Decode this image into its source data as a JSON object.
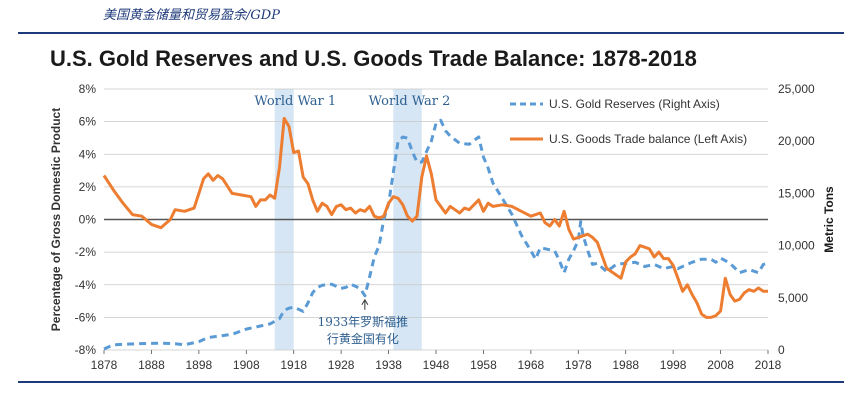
{
  "caption": "美国黄金储量和贸易盈余/GDP",
  "colors": {
    "gold": "#5b9bd5",
    "trade": "#ed7d31",
    "shade": "#d6e6f4",
    "grid": "#c8c8c8",
    "zero": "#555555",
    "text": "#333333",
    "title": "#1a1a1a",
    "annot": "#2e5f8f",
    "rule": "#1f3a7a"
  },
  "chart_data": {
    "type": "line",
    "title": "U.S. Gold Reserves and U.S. Goods Trade Balance: 1878-2018",
    "ylabel_left": "Percentage of Gross Domestic Product",
    "ylabel_right": "Metric Tons",
    "xlim": [
      1878,
      2018
    ],
    "ylim_left": [
      -8,
      8
    ],
    "ylim_right": [
      0,
      25000
    ],
    "x_ticks": [
      "1878",
      "1888",
      "1898",
      "1908",
      "1918",
      "1928",
      "1938",
      "1948",
      "1958",
      "1968",
      "1978",
      "1988",
      "1998",
      "2008",
      "2018"
    ],
    "y_left_ticks": [
      "8%",
      "6%",
      "4%",
      "2%",
      "0%",
      "-2%",
      "-4%",
      "-6%",
      "-8%"
    ],
    "y_right_ticks": [
      "25,000",
      "20,000",
      "15,000",
      "10,000",
      "5,000",
      "0"
    ],
    "legend_position": "top-right",
    "shaded_periods": [
      {
        "label": "World War 1",
        "start": 1914,
        "end": 1918
      },
      {
        "label": "World War 2",
        "start": 1939,
        "end": 1945
      }
    ],
    "annotation": {
      "x": 1933,
      "y_right": 5000,
      "lines": [
        "1933年罗斯福推",
        "行黄金国有化"
      ]
    },
    "series": [
      {
        "name": "U.S. Gold Reserves (Right Axis)",
        "axis": "right",
        "style": "dashed",
        "points": [
          [
            1878,
            100
          ],
          [
            1880,
            500
          ],
          [
            1885,
            600
          ],
          [
            1890,
            650
          ],
          [
            1893,
            600
          ],
          [
            1895,
            500
          ],
          [
            1898,
            800
          ],
          [
            1900,
            1200
          ],
          [
            1905,
            1500
          ],
          [
            1908,
            2000
          ],
          [
            1910,
            2200
          ],
          [
            1913,
            2500
          ],
          [
            1915,
            3000
          ],
          [
            1916,
            3800
          ],
          [
            1917,
            4000
          ],
          [
            1918,
            4100
          ],
          [
            1919,
            3900
          ],
          [
            1920,
            3700
          ],
          [
            1921,
            4500
          ],
          [
            1922,
            5500
          ],
          [
            1923,
            6000
          ],
          [
            1924,
            6200
          ],
          [
            1926,
            6300
          ],
          [
            1928,
            5900
          ],
          [
            1929,
            6000
          ],
          [
            1930,
            6300
          ],
          [
            1931,
            6100
          ],
          [
            1932,
            5900
          ],
          [
            1933,
            5200
          ],
          [
            1934,
            7000
          ],
          [
            1935,
            8900
          ],
          [
            1936,
            10000
          ],
          [
            1937,
            12500
          ],
          [
            1938,
            14000
          ],
          [
            1939,
            17000
          ],
          [
            1940,
            20000
          ],
          [
            1941,
            20400
          ],
          [
            1942,
            20300
          ],
          [
            1943,
            19000
          ],
          [
            1944,
            18000
          ],
          [
            1945,
            18000
          ],
          [
            1946,
            19000
          ],
          [
            1947,
            20000
          ],
          [
            1948,
            21700
          ],
          [
            1949,
            22000
          ],
          [
            1950,
            21000
          ],
          [
            1951,
            20500
          ],
          [
            1953,
            19800
          ],
          [
            1955,
            19700
          ],
          [
            1957,
            20400
          ],
          [
            1958,
            18500
          ],
          [
            1959,
            17400
          ],
          [
            1960,
            16000
          ],
          [
            1962,
            14500
          ],
          [
            1964,
            13000
          ],
          [
            1966,
            11000
          ],
          [
            1968,
            9500
          ],
          [
            1969,
            8700
          ],
          [
            1970,
            9800
          ],
          [
            1972,
            9600
          ],
          [
            1973,
            9500
          ],
          [
            1974,
            8600
          ],
          [
            1975,
            7400
          ],
          [
            1976,
            8700
          ],
          [
            1977,
            9500
          ],
          [
            1978,
            10500
          ],
          [
            1978.5,
            12300
          ],
          [
            1979,
            11000
          ],
          [
            1980,
            9500
          ],
          [
            1981,
            8200
          ],
          [
            1982,
            8300
          ],
          [
            1984,
            7500
          ],
          [
            1986,
            8200
          ],
          [
            1988,
            8300
          ],
          [
            1990,
            8400
          ],
          [
            1992,
            8000
          ],
          [
            1994,
            8200
          ],
          [
            1996,
            7800
          ],
          [
            1998,
            8000
          ],
          [
            1999,
            7800
          ],
          [
            2000,
            8000
          ],
          [
            2002,
            8400
          ],
          [
            2004,
            8700
          ],
          [
            2006,
            8700
          ],
          [
            2007,
            8400
          ],
          [
            2008,
            8800
          ],
          [
            2010,
            8300
          ],
          [
            2012,
            7400
          ],
          [
            2014,
            7700
          ],
          [
            2016,
            7400
          ],
          [
            2017,
            8200
          ],
          [
            2018,
            8300
          ]
        ]
      },
      {
        "name": "U.S. Goods Trade balance (Left Axis)",
        "axis": "left",
        "style": "solid",
        "points": [
          [
            1878,
            2.7
          ],
          [
            1880,
            1.8
          ],
          [
            1882,
            1.0
          ],
          [
            1884,
            0.3
          ],
          [
            1886,
            0.2
          ],
          [
            1888,
            -0.3
          ],
          [
            1890,
            -0.5
          ],
          [
            1892,
            0.0
          ],
          [
            1893,
            0.6
          ],
          [
            1895,
            0.5
          ],
          [
            1897,
            0.7
          ],
          [
            1898,
            1.6
          ],
          [
            1899,
            2.5
          ],
          [
            1900,
            2.8
          ],
          [
            1901,
            2.4
          ],
          [
            1902,
            2.7
          ],
          [
            1903,
            2.5
          ],
          [
            1905,
            1.6
          ],
          [
            1907,
            1.5
          ],
          [
            1909,
            1.4
          ],
          [
            1910,
            0.8
          ],
          [
            1911,
            1.2
          ],
          [
            1912,
            1.2
          ],
          [
            1913,
            1.5
          ],
          [
            1914,
            1.3
          ],
          [
            1915,
            3.2
          ],
          [
            1916,
            6.2
          ],
          [
            1917,
            5.7
          ],
          [
            1918,
            4.1
          ],
          [
            1919,
            4.2
          ],
          [
            1920,
            2.6
          ],
          [
            1921,
            2.2
          ],
          [
            1922,
            1.2
          ],
          [
            1923,
            0.5
          ],
          [
            1924,
            1.0
          ],
          [
            1925,
            0.8
          ],
          [
            1926,
            0.3
          ],
          [
            1927,
            0.8
          ],
          [
            1928,
            0.9
          ],
          [
            1929,
            0.6
          ],
          [
            1930,
            0.7
          ],
          [
            1931,
            0.4
          ],
          [
            1932,
            0.6
          ],
          [
            1933,
            0.5
          ],
          [
            1934,
            0.8
          ],
          [
            1935,
            0.2
          ],
          [
            1936,
            0.1
          ],
          [
            1937,
            0.2
          ],
          [
            1938,
            1.0
          ],
          [
            1939,
            1.4
          ],
          [
            1940,
            1.3
          ],
          [
            1941,
            0.9
          ],
          [
            1942,
            0.2
          ],
          [
            1943,
            -0.1
          ],
          [
            1944,
            0.2
          ],
          [
            1945,
            2.6
          ],
          [
            1946,
            3.9
          ],
          [
            1947,
            2.8
          ],
          [
            1948,
            1.2
          ],
          [
            1949,
            0.8
          ],
          [
            1950,
            0.4
          ],
          [
            1951,
            0.8
          ],
          [
            1952,
            0.6
          ],
          [
            1953,
            0.4
          ],
          [
            1954,
            0.7
          ],
          [
            1955,
            0.6
          ],
          [
            1956,
            0.9
          ],
          [
            1957,
            1.2
          ],
          [
            1958,
            0.5
          ],
          [
            1959,
            1.0
          ],
          [
            1960,
            0.8
          ],
          [
            1962,
            0.9
          ],
          [
            1964,
            0.8
          ],
          [
            1966,
            0.5
          ],
          [
            1968,
            0.2
          ],
          [
            1970,
            0.4
          ],
          [
            1971,
            -0.2
          ],
          [
            1972,
            -0.4
          ],
          [
            1973,
            0.0
          ],
          [
            1974,
            -0.4
          ],
          [
            1975,
            0.5
          ],
          [
            1976,
            -0.6
          ],
          [
            1977,
            -1.2
          ],
          [
            1978,
            -1.1
          ],
          [
            1979,
            -1.0
          ],
          [
            1980,
            -0.9
          ],
          [
            1981,
            -1.1
          ],
          [
            1982,
            -1.4
          ],
          [
            1983,
            -2.2
          ],
          [
            1984,
            -3.0
          ],
          [
            1985,
            -3.2
          ],
          [
            1986,
            -3.4
          ],
          [
            1987,
            -3.6
          ],
          [
            1988,
            -2.6
          ],
          [
            1989,
            -2.3
          ],
          [
            1990,
            -2.1
          ],
          [
            1991,
            -1.6
          ],
          [
            1992,
            -1.7
          ],
          [
            1993,
            -1.8
          ],
          [
            1994,
            -2.3
          ],
          [
            1995,
            -2.0
          ],
          [
            1996,
            -2.4
          ],
          [
            1997,
            -2.4
          ],
          [
            1998,
            -2.8
          ],
          [
            1999,
            -3.6
          ],
          [
            2000,
            -4.4
          ],
          [
            2001,
            -4.0
          ],
          [
            2002,
            -4.6
          ],
          [
            2003,
            -5.1
          ],
          [
            2004,
            -5.8
          ],
          [
            2005,
            -6.0
          ],
          [
            2006,
            -6.0
          ],
          [
            2007,
            -5.9
          ],
          [
            2008,
            -5.6
          ],
          [
            2009,
            -3.6
          ],
          [
            2010,
            -4.6
          ],
          [
            2011,
            -5.0
          ],
          [
            2012,
            -4.9
          ],
          [
            2013,
            -4.5
          ],
          [
            2014,
            -4.3
          ],
          [
            2015,
            -4.4
          ],
          [
            2016,
            -4.2
          ],
          [
            2017,
            -4.4
          ],
          [
            2018,
            -4.4
          ]
        ]
      }
    ]
  }
}
